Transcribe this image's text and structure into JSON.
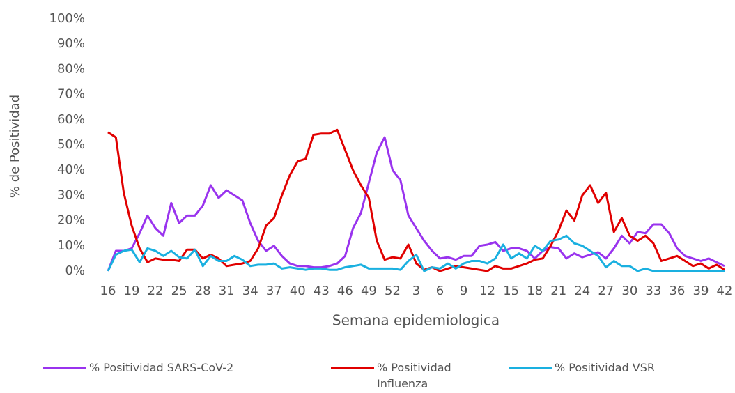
{
  "chart_data": {
    "type": "line",
    "y_label": "% de Positividad",
    "x_label": "Semana epidemiologica",
    "categories": [
      "16",
      null,
      null,
      "19",
      null,
      null,
      "22",
      null,
      null,
      "25",
      null,
      null,
      "28",
      null,
      null,
      "31",
      null,
      null,
      "34",
      null,
      null,
      "37",
      null,
      null,
      "40",
      null,
      null,
      "43",
      null,
      null,
      "46",
      null,
      null,
      "49",
      null,
      null,
      "52",
      null,
      null,
      "3",
      null,
      null,
      "6",
      null,
      null,
      "9",
      null,
      null,
      "12",
      null,
      null,
      "15",
      null,
      null,
      "18",
      null,
      null,
      "21",
      null,
      null,
      "24",
      null,
      null,
      "27",
      null,
      null,
      "30",
      null,
      null,
      "33",
      null,
      null,
      "36",
      null,
      null,
      "39",
      null,
      null,
      "42"
    ],
    "ylim": [
      0,
      100
    ],
    "yticks": [
      {
        "value": 0,
        "label": "0%"
      },
      {
        "value": 10,
        "label": "10%"
      },
      {
        "value": 20,
        "label": "20%"
      },
      {
        "value": 30,
        "label": "30%"
      },
      {
        "value": 40,
        "label": "40%"
      },
      {
        "value": 50,
        "label": "50%"
      },
      {
        "value": 60,
        "label": "60%"
      },
      {
        "value": 70,
        "label": "70%"
      },
      {
        "value": 80,
        "label": "80%"
      },
      {
        "value": 90,
        "label": "90%"
      },
      {
        "value": 100,
        "label": "100%"
      }
    ],
    "grid": false,
    "series": [
      {
        "name": "% Positividad SARS-CoV-2",
        "color": "#9933ee",
        "values": [
          0,
          8,
          8,
          9,
          15,
          22,
          17,
          14,
          27,
          19,
          22,
          22,
          26,
          34,
          29,
          32,
          30,
          28,
          19,
          12,
          8,
          10,
          6,
          3,
          2,
          2,
          1.5,
          1.5,
          2,
          3,
          6,
          17,
          23,
          35,
          47,
          53,
          40,
          36,
          22,
          17,
          12,
          8,
          5,
          5.5,
          4.5,
          6,
          6,
          10,
          10.5,
          11.5,
          8,
          9,
          9,
          8,
          5,
          8,
          9.5,
          9,
          5,
          7,
          5.5,
          6.5,
          7.5,
          5,
          9,
          14,
          11,
          15.5,
          15,
          18.5,
          18.5,
          15,
          9,
          6,
          5,
          4,
          5,
          3.5,
          2
        ]
      },
      {
        "name": "% Positividad Influenza",
        "color": "#e00000",
        "values": [
          55,
          53,
          31,
          18,
          9,
          3.5,
          5,
          4.5,
          4.5,
          4,
          8.5,
          8.5,
          5,
          6.5,
          5,
          2,
          2.5,
          3,
          4,
          9,
          18,
          21,
          30,
          38,
          43.5,
          44.5,
          54,
          54.5,
          54.5,
          56,
          48,
          40,
          34,
          29,
          12,
          4.5,
          5.5,
          5,
          10.5,
          3,
          0.5,
          1.5,
          0,
          1,
          2,
          1.5,
          1,
          0.5,
          0,
          2,
          1,
          1,
          2,
          3,
          4.5,
          5,
          10,
          16,
          24,
          20,
          30,
          34,
          27,
          31,
          15.5,
          21,
          14,
          12,
          14,
          11,
          4,
          5,
          6,
          4,
          2,
          3,
          1,
          2.5,
          0.5
        ]
      },
      {
        "name": "% Positividad VSR",
        "color": "#1ab0e0",
        "values": [
          0,
          6.5,
          8,
          8.5,
          3.5,
          9,
          8,
          6,
          8,
          5.5,
          5,
          8.5,
          2,
          6,
          4,
          4,
          6,
          4.5,
          2,
          2.5,
          2.5,
          3,
          1,
          1.5,
          1,
          0.5,
          1,
          1,
          0.5,
          0.5,
          1.5,
          2,
          2.5,
          1,
          1,
          1,
          1,
          0.5,
          4,
          6.5,
          0,
          1.5,
          1,
          3,
          1,
          3,
          4,
          4,
          3,
          5,
          10.5,
          5,
          7,
          5,
          10,
          8,
          12,
          12.5,
          14,
          11,
          10,
          8,
          6,
          1.5,
          4,
          2,
          2,
          0,
          1,
          0,
          0,
          0,
          0,
          0,
          0,
          0,
          0,
          0,
          0
        ]
      }
    ]
  }
}
